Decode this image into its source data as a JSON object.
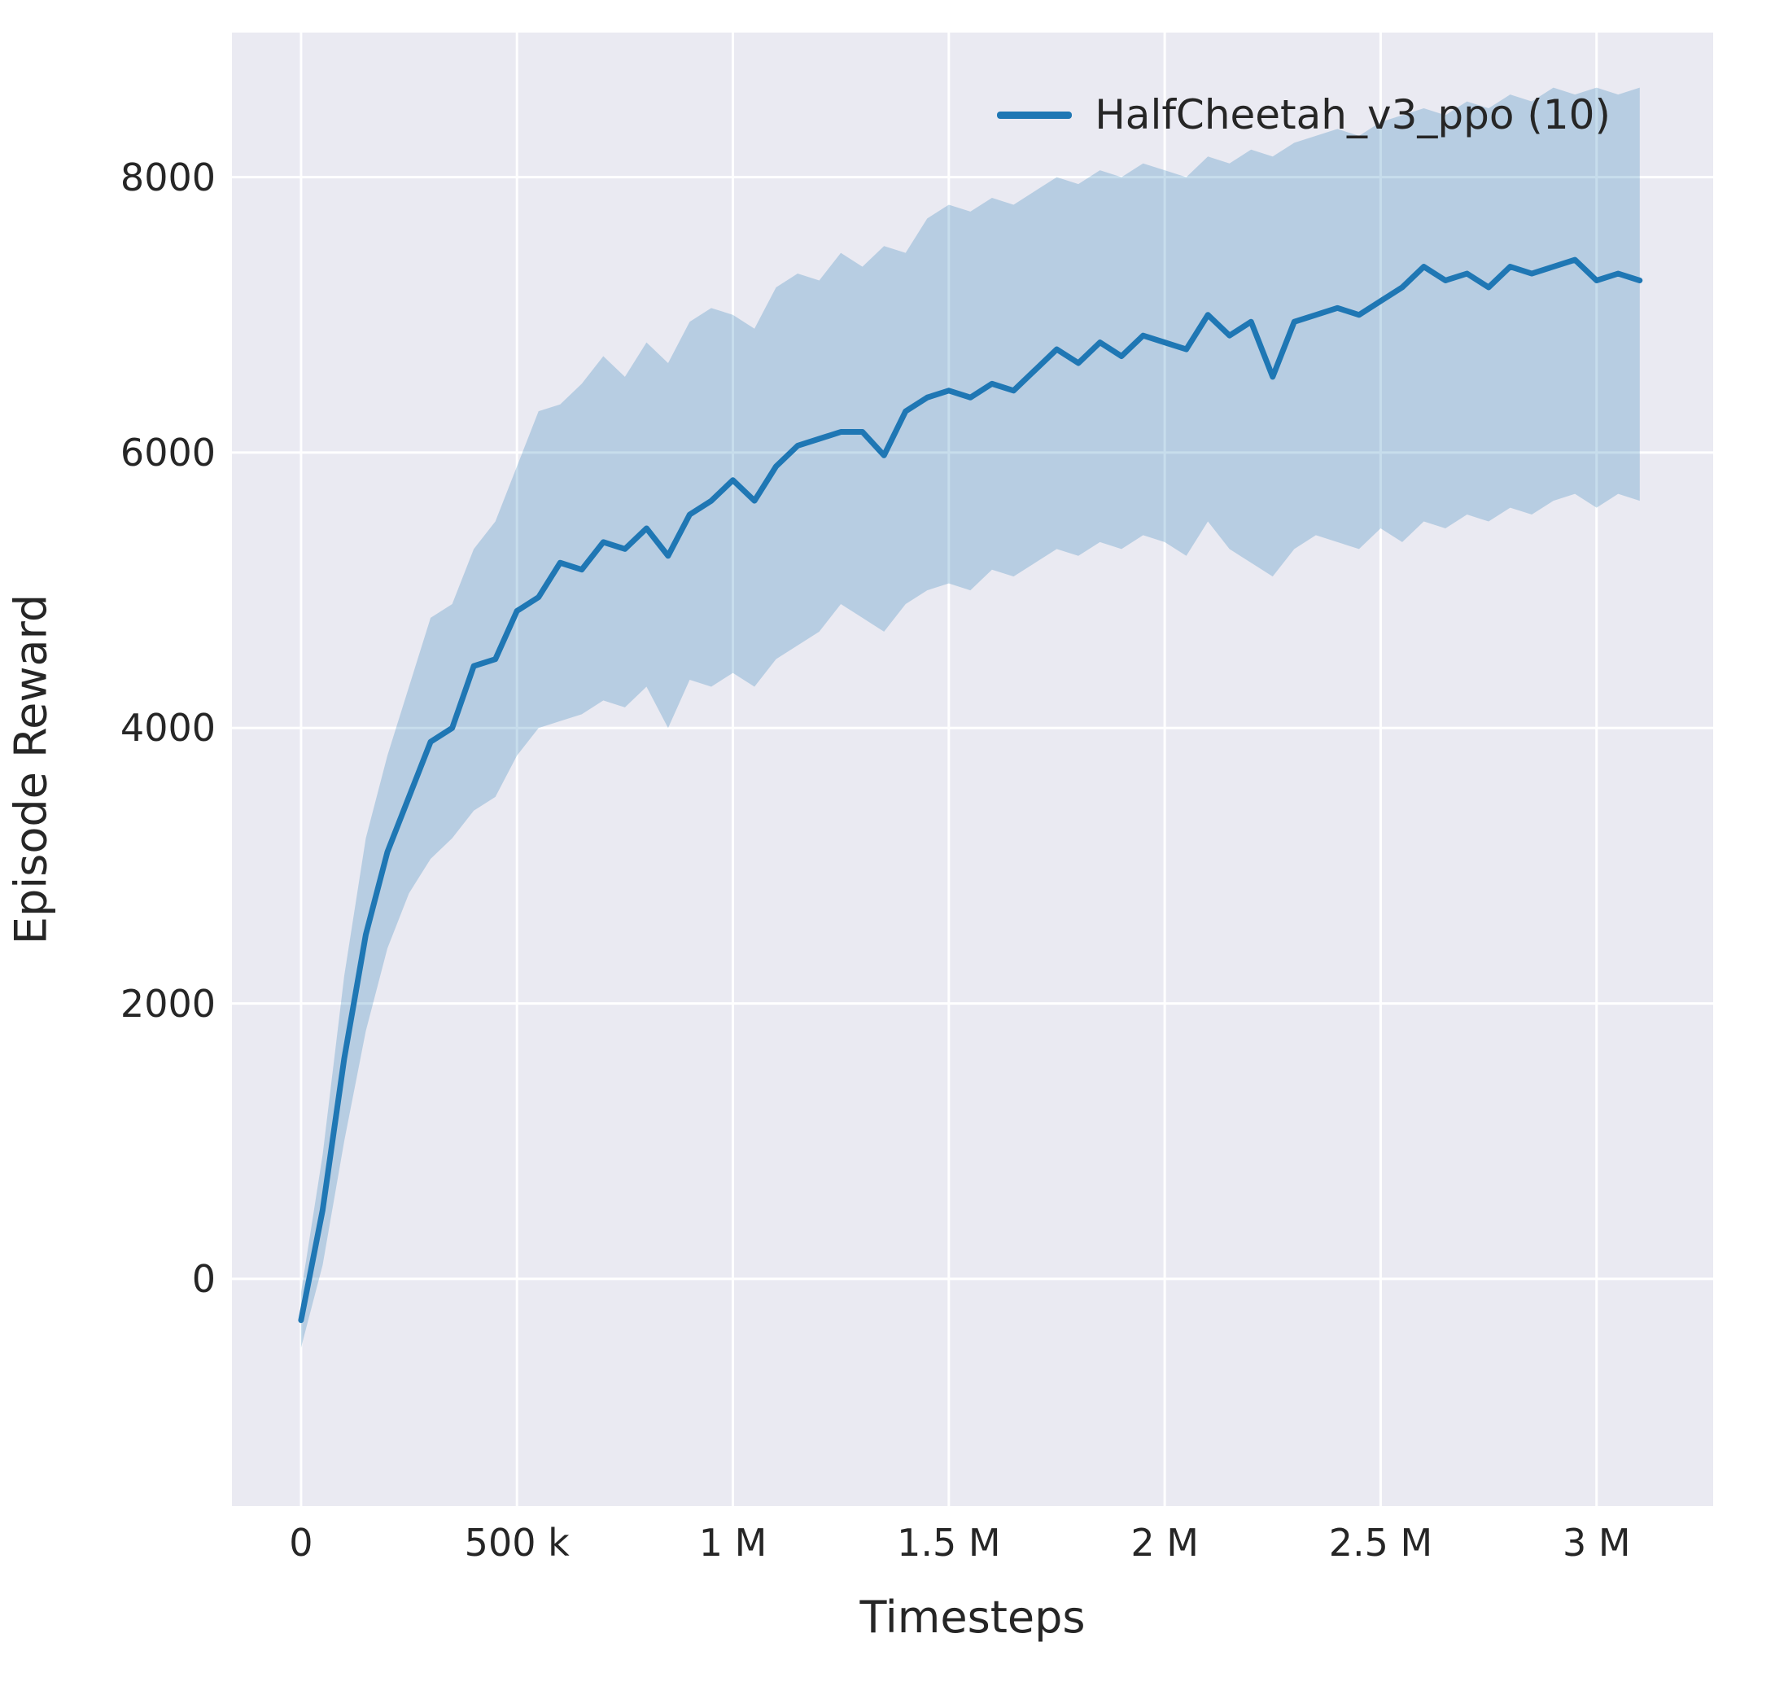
{
  "figure": {
    "background": "#ffffff",
    "axes_background": "#eaeaf2",
    "grid_color": "#ffffff",
    "text_color": "#262626"
  },
  "chart_data": {
    "type": "line",
    "title": "",
    "xlabel": "Timesteps",
    "ylabel": "Episode Reward",
    "x_unit": "millions of timesteps",
    "xlim": [
      -0.16,
      3.27
    ],
    "ylim": [
      -1650,
      9050
    ],
    "grid": true,
    "legend_position": "upper right",
    "xticks": {
      "values": [
        0,
        0.5,
        1,
        1.5,
        2,
        2.5,
        3
      ],
      "labels": [
        "0",
        "500 k",
        "1 M",
        "1.5 M",
        "2 M",
        "2.5 M",
        "3 M"
      ]
    },
    "yticks": {
      "values": [
        0,
        2000,
        4000,
        6000,
        8000
      ],
      "labels": [
        "0",
        "2000",
        "4000",
        "6000",
        "8000"
      ]
    },
    "series": [
      {
        "name": "HalfCheetah_v3_ppo (10)",
        "color": "#1f77b4",
        "line_width": 7,
        "band_color": "#1f77b4",
        "band_opacity": 0.25,
        "x": [
          0.0,
          0.05,
          0.1,
          0.15,
          0.2,
          0.25,
          0.3,
          0.35,
          0.4,
          0.45,
          0.5,
          0.55,
          0.6,
          0.65,
          0.7,
          0.75,
          0.8,
          0.85,
          0.9,
          0.95,
          1.0,
          1.05,
          1.1,
          1.15,
          1.2,
          1.25,
          1.3,
          1.35,
          1.4,
          1.45,
          1.5,
          1.55,
          1.6,
          1.65,
          1.7,
          1.75,
          1.8,
          1.85,
          1.9,
          1.95,
          2.0,
          2.05,
          2.1,
          2.15,
          2.2,
          2.25,
          2.3,
          2.35,
          2.4,
          2.45,
          2.5,
          2.55,
          2.6,
          2.65,
          2.7,
          2.75,
          2.8,
          2.85,
          2.9,
          2.95,
          3.0,
          3.05,
          3.1
        ],
        "mean": [
          -300,
          500,
          1600,
          2500,
          3100,
          3500,
          3900,
          4000,
          4450,
          4500,
          4850,
          4950,
          5200,
          5150,
          5350,
          5300,
          5450,
          5250,
          5550,
          5650,
          5800,
          5650,
          5900,
          6050,
          6100,
          6150,
          6150,
          5980,
          6300,
          6400,
          6450,
          6400,
          6500,
          6450,
          6600,
          6750,
          6650,
          6800,
          6700,
          6850,
          6800,
          6750,
          7000,
          6850,
          6950,
          6550,
          6950,
          7000,
          7050,
          7000,
          7100,
          7200,
          7350,
          7250,
          7300,
          7200,
          7350,
          7300,
          7350,
          7400,
          7250,
          7300,
          7250
        ],
        "lower": [
          -500,
          100,
          1000,
          1800,
          2400,
          2800,
          3050,
          3200,
          3400,
          3500,
          3800,
          4000,
          4050,
          4100,
          4200,
          4150,
          4300,
          4000,
          4350,
          4300,
          4400,
          4300,
          4500,
          4600,
          4700,
          4900,
          4800,
          4700,
          4900,
          5000,
          5050,
          5000,
          5150,
          5100,
          5200,
          5300,
          5250,
          5350,
          5300,
          5400,
          5350,
          5250,
          5500,
          5300,
          5200,
          5100,
          5300,
          5400,
          5350,
          5300,
          5450,
          5350,
          5500,
          5450,
          5550,
          5500,
          5600,
          5550,
          5650,
          5700,
          5600,
          5700,
          5650
        ],
        "upper": [
          -100,
          900,
          2200,
          3200,
          3800,
          4300,
          4800,
          4900,
          5300,
          5500,
          5900,
          6300,
          6350,
          6500,
          6700,
          6550,
          6800,
          6650,
          6950,
          7050,
          7000,
          6900,
          7200,
          7300,
          7250,
          7450,
          7350,
          7500,
          7450,
          7700,
          7800,
          7750,
          7850,
          7800,
          7900,
          8000,
          7950,
          8050,
          8000,
          8100,
          8050,
          8000,
          8150,
          8100,
          8200,
          8150,
          8250,
          8300,
          8350,
          8300,
          8400,
          8450,
          8500,
          8450,
          8550,
          8500,
          8600,
          8550,
          8650,
          8600,
          8650,
          8600,
          8650
        ]
      }
    ]
  }
}
